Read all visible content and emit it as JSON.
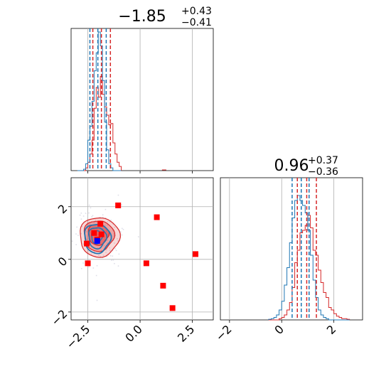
{
  "chart_data": {
    "type": "corner",
    "colors": {
      "samples_a": "#d62728",
      "samples_b": "#1f77b4",
      "grid": "#b0b0b0",
      "points": "#ff0000",
      "truth_marker": "#0000ff"
    },
    "params": [
      {
        "title": {
          "value": "−1.85",
          "upper": "+0.43",
          "lower": "−0.41"
        }
      },
      {
        "title": {
          "value": "0.96",
          "upper": "+0.37",
          "lower": "−0.36"
        }
      }
    ],
    "x_ticks_param0": [
      -2.5,
      0.0,
      2.5
    ],
    "x_ticklabels_param0": [
      "−2.5",
      "0.0",
      "2.5"
    ],
    "x_ticks_param1": [
      -2,
      0,
      2
    ],
    "x_ticklabels_param1": [
      "−2",
      "0",
      "2"
    ],
    "y_ticks_param1": [
      -2,
      0,
      2
    ],
    "y_ticklabels_param1": [
      "−2",
      "0",
      "2"
    ],
    "xlim_param0": [
      -3.3,
      3.5
    ],
    "xlim_param1": [
      -2.35,
      3.1
    ],
    "ylim_param1": [
      -2.3,
      3.1
    ],
    "quantile_lines": {
      "param0": {
        "samples_b": [
          -2.4,
          -2.02,
          -1.62
        ],
        "samples_a": [
          -2.26,
          -1.85,
          -1.42
        ]
      },
      "param1": {
        "samples_b": [
          0.4,
          0.75,
          1.05
        ],
        "samples_a": [
          0.6,
          0.96,
          1.33
        ]
      }
    },
    "marginal_param0": {
      "bin_centers": [
        -2.95,
        -2.85,
        -2.75,
        -2.65,
        -2.55,
        -2.45,
        -2.35,
        -2.25,
        -2.15,
        -2.05,
        -1.95,
        -1.85,
        -1.75,
        -1.65,
        -1.55,
        -1.45,
        -1.35,
        -1.25,
        -1.15,
        -1.05,
        -0.95,
        1.15
      ],
      "samples_a": [
        0,
        0,
        0,
        0,
        0.02,
        0.06,
        0.12,
        0.22,
        0.45,
        0.6,
        0.53,
        0.68,
        0.55,
        0.46,
        0.4,
        0.33,
        0.34,
        0.2,
        0.12,
        0.06,
        0.03,
        0.01
      ],
      "samples_b": [
        0,
        0,
        0,
        0.01,
        0.05,
        0.22,
        0.32,
        0.5,
        0.72,
        0.85,
        1.0,
        0.9,
        0.65,
        0.35,
        0.15,
        0.05,
        0.02,
        0,
        0,
        0,
        0,
        0
      ]
    },
    "marginal_param1": {
      "bin_centers": [
        -0.45,
        -0.35,
        -0.25,
        -0.15,
        -0.05,
        0.05,
        0.15,
        0.25,
        0.35,
        0.45,
        0.55,
        0.65,
        0.75,
        0.85,
        0.95,
        1.05,
        1.15,
        1.25,
        1.35,
        1.45,
        1.55,
        1.65,
        1.75,
        1.85,
        1.95,
        2.05,
        2.15,
        2.25,
        2.35,
        2.45,
        2.55
      ],
      "samples_a": [
        0,
        0,
        0,
        0,
        0.01,
        0.02,
        0.04,
        0.08,
        0.14,
        0.26,
        0.46,
        0.56,
        0.7,
        0.72,
        0.76,
        0.84,
        0.74,
        0.56,
        0.52,
        0.4,
        0.3,
        0.22,
        0.18,
        0.1,
        0.08,
        0.05,
        0.03,
        0.02,
        0.01,
        0.01,
        0.005
      ],
      "samples_b": [
        0.005,
        0.01,
        0.02,
        0.04,
        0.08,
        0.15,
        0.28,
        0.42,
        0.62,
        0.82,
        0.96,
        1.0,
        0.96,
        0.92,
        0.86,
        0.72,
        0.52,
        0.32,
        0.18,
        0.08,
        0.04,
        0.02,
        0.01,
        0,
        0,
        0,
        0,
        0,
        0,
        0,
        0
      ]
    },
    "scatter_points": [
      {
        "x": -1.05,
        "y": 2.05
      },
      {
        "x": 0.8,
        "y": 1.6
      },
      {
        "x": 2.65,
        "y": 0.2
      },
      {
        "x": 0.3,
        "y": -0.15
      },
      {
        "x": 1.1,
        "y": -1.0
      },
      {
        "x": 1.55,
        "y": -1.85
      },
      {
        "x": -2.5,
        "y": -0.15
      },
      {
        "x": -2.55,
        "y": 0.6
      },
      {
        "x": -2.2,
        "y": 1.0
      },
      {
        "x": -1.9,
        "y": 1.35
      },
      {
        "x": -1.85,
        "y": 0.95
      },
      {
        "x": -2.05,
        "y": 0.75
      }
    ],
    "truth_point": {
      "x": -2.05,
      "y": 0.7
    }
  }
}
